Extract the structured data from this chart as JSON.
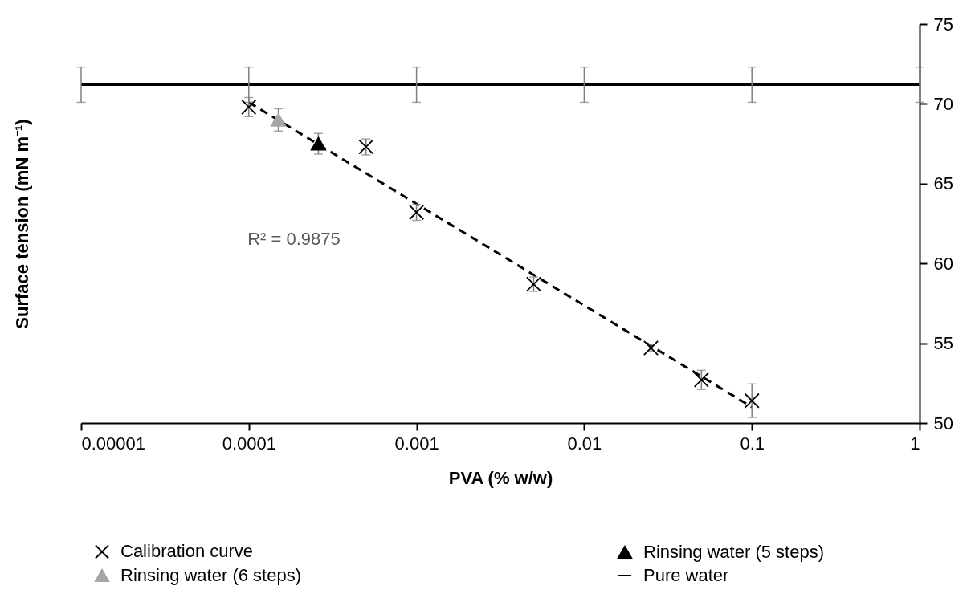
{
  "chart_data": {
    "type": "scatter",
    "xlabel": "PVA (% w/w)",
    "ylabel": "Surface tension (mN m⁻¹)",
    "log": "x",
    "xlim": [
      1e-05,
      1
    ],
    "xticks": [
      {
        "value": 1e-05,
        "label": "0.00001"
      },
      0.0001,
      0.001,
      0.01,
      0.1,
      1
    ],
    "ylim": [
      50,
      75
    ],
    "yticks": [
      50,
      55,
      60,
      65,
      70,
      75
    ],
    "legend": "bottom",
    "annotations": [
      "R² = 0.9875"
    ],
    "series": [
      {
        "name": "Calibration curve",
        "marker": "cross",
        "color": "#000000",
        "x": [
          0.0001,
          0.0005,
          0.001,
          0.005,
          0.025,
          0.05,
          0.1
        ],
        "values": [
          69.8,
          67.3,
          63.2,
          58.7,
          54.7,
          52.7,
          51.4
        ],
        "errors": [
          0.6,
          0.5,
          0.5,
          0.45,
          0.2,
          0.6,
          1.05
        ]
      },
      {
        "name": "Rinsing water (5 steps)",
        "type": "scatter",
        "marker": "triangle",
        "color": "#000000",
        "x": [
          0.00026
        ],
        "values": [
          67.5
        ],
        "errors": [
          0.65
        ]
      },
      {
        "name": "Rinsing water (6 steps)",
        "type": "scatter",
        "marker": "triangle",
        "color": "#a6a6a6",
        "x": [
          0.00015
        ],
        "values": [
          69.0
        ],
        "errors": [
          0.7
        ]
      },
      {
        "name": "Pure water",
        "type": "line",
        "marker": "none",
        "line_style": "solid",
        "color": "#000000",
        "x": [
          1e-05,
          0.0001,
          0.001,
          0.01,
          0.1,
          1
        ],
        "values": [
          71.2,
          71.2,
          71.2,
          71.2,
          71.2,
          71.2
        ],
        "errors": [
          1.1,
          1.1,
          1.1,
          1.1,
          1.1,
          1.1
        ]
      },
      {
        "type": "line",
        "marker": "none",
        "line_style": "dashed",
        "color": "#000000",
        "x": [
          0.0001,
          0.1
        ],
        "values": [
          70.1,
          51.0
        ]
      }
    ]
  }
}
